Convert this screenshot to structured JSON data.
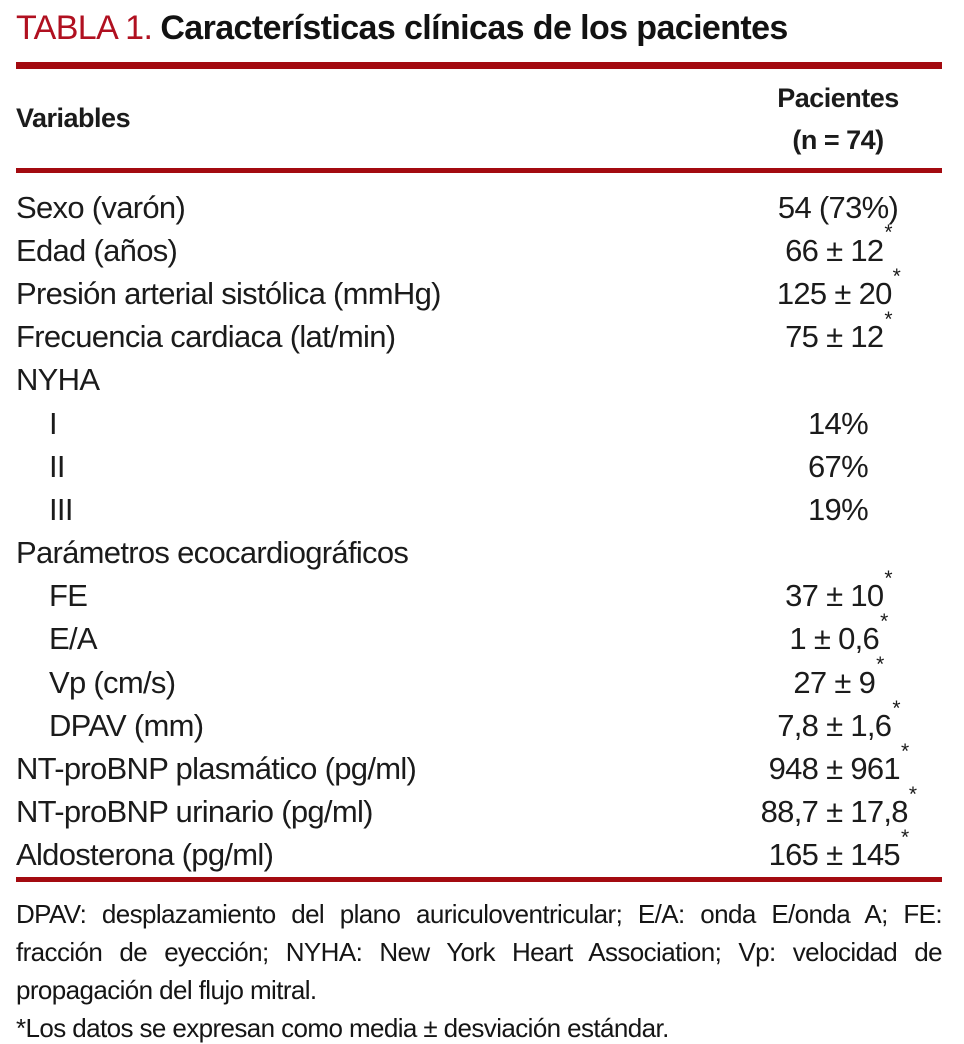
{
  "title": {
    "label": "TABLA 1.",
    "text": "Características clínicas de los pacientes"
  },
  "table": {
    "header": {
      "variables": "Variables",
      "patients_line1": "Pacientes",
      "patients_line2": "(n = 74)"
    },
    "rows": [
      {
        "label": "Sexo (varón)",
        "value": "54 (73%)",
        "sup": ""
      },
      {
        "label": "Edad (años)",
        "value": "66 ± 12",
        "sup": "*"
      },
      {
        "label": "Presión arterial sistólica (mmHg)",
        "value": "125 ± 20",
        "sup": "*"
      },
      {
        "label": "Frecuencia cardiaca (lat/min)",
        "value": "75 ± 12",
        "sup": "*"
      },
      {
        "label": "NYHA",
        "value": "",
        "sup": ""
      },
      {
        "label": "I",
        "value": "14%",
        "sup": ""
      },
      {
        "label": "II",
        "value": "67%",
        "sup": ""
      },
      {
        "label": "III",
        "value": "19%",
        "sup": ""
      },
      {
        "label": "Parámetros ecocardiográficos",
        "value": "",
        "sup": ""
      },
      {
        "label": "FE",
        "value": "37 ± 10",
        "sup": "*"
      },
      {
        "label": "E/A",
        "value": "1 ± 0,6",
        "sup": "*"
      },
      {
        "label": "Vp (cm/s)",
        "value": "27 ± 9",
        "sup": "*"
      },
      {
        "label": "DPAV (mm)",
        "value": "7,8 ± 1,6",
        "sup": "*"
      },
      {
        "label": "NT-proBNP plasmático (pg/ml)",
        "value": "948 ± 961",
        "sup": "*"
      },
      {
        "label": "NT-proBNP urinario (pg/ml)",
        "value": "88,7 ± 17,8",
        "sup": "*"
      },
      {
        "label": "Aldosterona (pg/ml)",
        "value": "165 ± 145",
        "sup": "*"
      }
    ]
  },
  "footnotes": {
    "abbreviations": "DPAV: desplazamiento del plano auriculoventricular; E/A: onda E/onda A; FE: fracción de eyección; NYHA: New York Heart Association; Vp: velocidad de propagación del flujo mitral.",
    "note": "*Los datos se expresan como media ± desviación estándar."
  },
  "colors": {
    "accent_red": "#b01020",
    "rule_red": "#a30a10",
    "text": "#1b1b1b"
  }
}
